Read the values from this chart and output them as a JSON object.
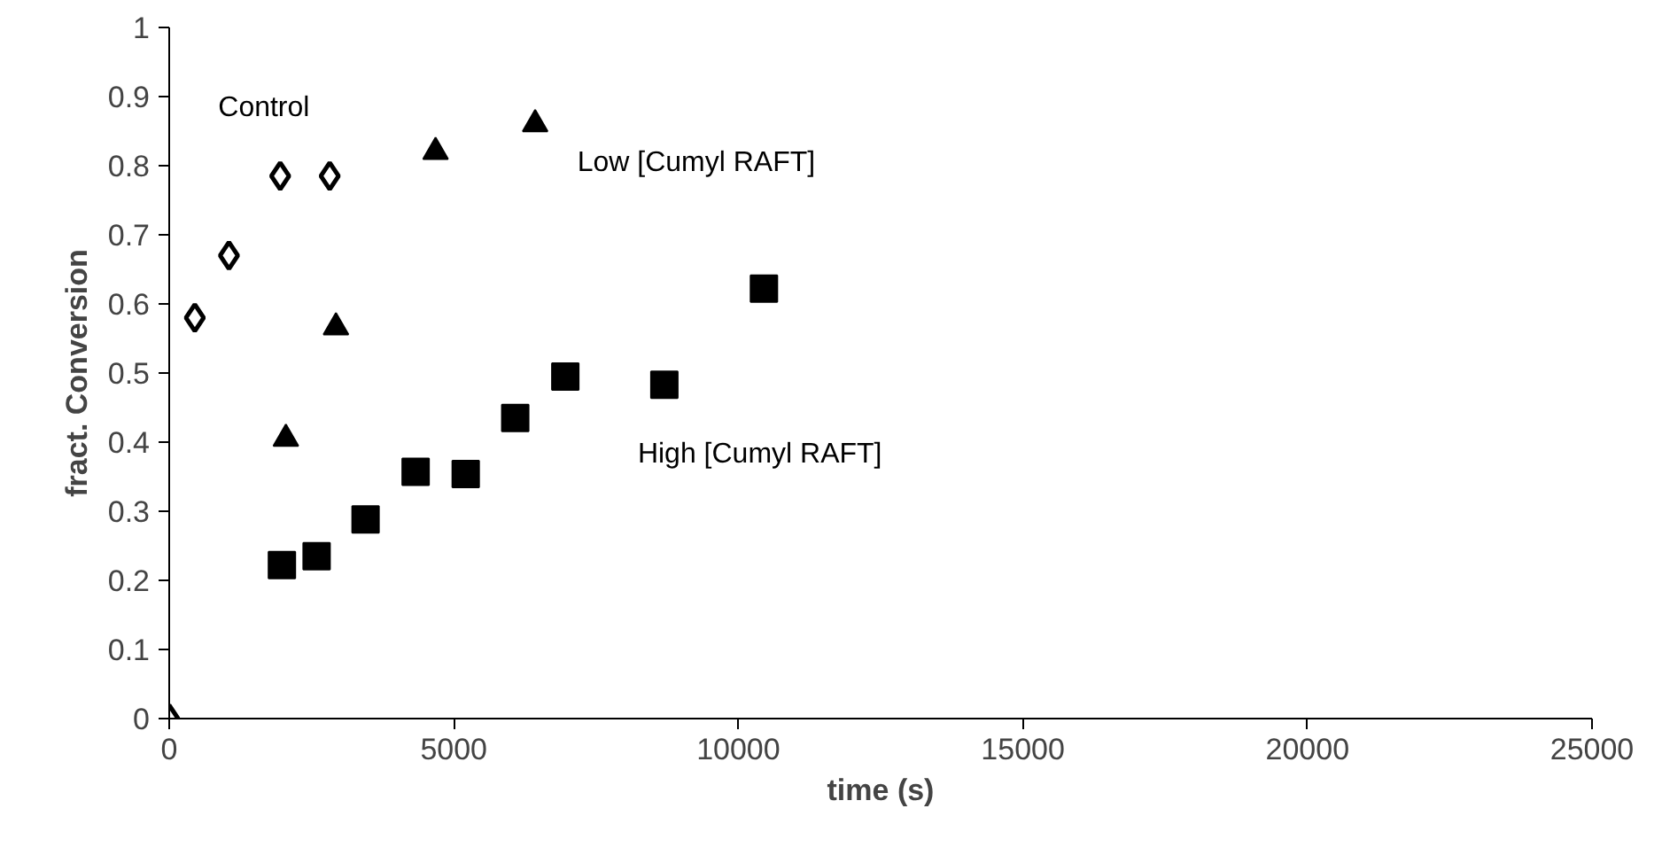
{
  "chart_data": {
    "type": "scatter",
    "xlabel": "time (s)",
    "ylabel": "fract. Conversion",
    "xlim": [
      0,
      25000
    ],
    "xticks": [
      0,
      5000,
      10000,
      15000,
      20000,
      25000
    ],
    "ylim": [
      0,
      1
    ],
    "yticks": [
      0,
      0.1,
      0.2,
      0.3,
      0.4,
      0.5,
      0.6,
      0.7,
      0.8,
      0.9,
      1
    ],
    "grid": false,
    "series": [
      {
        "name": "Control",
        "color": "#000000",
        "marker": "diamond",
        "x": [
          0,
          450,
          1050,
          1950,
          2820
        ],
        "values": [
          0,
          0.58,
          0.67,
          0.785,
          0.785
        ]
      },
      {
        "name": "Low [Cumyl RAFT]",
        "color": "#000000",
        "marker": "triangle",
        "x": [
          2050,
          2930,
          4680,
          6430
        ],
        "values": [
          0.405,
          0.566,
          0.82,
          0.86
        ]
      },
      {
        "name": "High [Cumyl RAFT]",
        "color": "#000000",
        "marker": "square",
        "x": [
          1980,
          2590,
          3450,
          4330,
          5210,
          6080,
          6960,
          8700,
          10450
        ],
        "values": [
          0.222,
          0.235,
          0.288,
          0.357,
          0.354,
          0.435,
          0.495,
          0.483,
          0.622
        ]
      }
    ]
  }
}
